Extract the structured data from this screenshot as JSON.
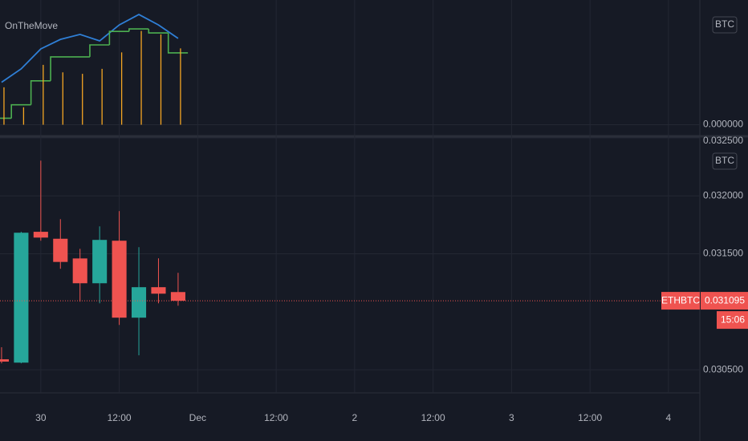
{
  "chart_data": [
    {
      "type": "indicator",
      "title": "OnTheMove",
      "unit": "BTC",
      "x": [
        0,
        1,
        2,
        3,
        4,
        5,
        6,
        7,
        8,
        9
      ],
      "series": [
        {
          "style": "line",
          "color": "#2f7fd6",
          "values": [
            8.5,
            11.2,
            15.2,
            17.1,
            18.1,
            16.8,
            20,
            22.1,
            20,
            17.3
          ]
        },
        {
          "style": "step",
          "color": "#4caf50",
          "values": [
            1.3,
            4,
            8.8,
            13.6,
            13.6,
            16,
            18.7,
            19.2,
            18.4,
            14.4
          ]
        },
        {
          "style": "histogram",
          "color": "#f5a623",
          "values": [
            7.5,
            3.5,
            12,
            10.5,
            10.2,
            11.2,
            14.5,
            18.8,
            18.1,
            15.3
          ]
        }
      ],
      "ylim": [
        -2,
        25
      ],
      "yticks": [
        {
          "value": 0,
          "label": "0.000000"
        }
      ]
    },
    {
      "type": "candlestick",
      "symbol": "ETHBTC",
      "unit": "BTC",
      "x": [
        0,
        1,
        2,
        3,
        4,
        5,
        6,
        7,
        8,
        9
      ],
      "open": [
        0.03059,
        0.030561,
        0.03169,
        0.03163,
        0.03146,
        0.031246,
        0.031613,
        0.030949,
        0.031212,
        0.03117
      ],
      "high": [
        0.030694,
        0.03169,
        0.032304,
        0.031799,
        0.031543,
        0.031737,
        0.031869,
        0.031557,
        0.031461,
        0.031336
      ],
      "low": [
        0.030555,
        0.030555,
        0.031613,
        0.031371,
        0.031087,
        0.031073,
        0.030886,
        0.030624,
        0.031073,
        0.031052
      ],
      "close": [
        0.03057,
        0.031682,
        0.03164,
        0.03143,
        0.031246,
        0.03162,
        0.030949,
        0.031212,
        0.031156,
        0.031095
      ],
      "up_color": "#26a69a",
      "down_color": "#ef5350",
      "ylim": [
        0.0303,
        0.0325
      ],
      "yticks": [
        {
          "value": 0.0325,
          "label": "0.032500"
        },
        {
          "value": 0.032,
          "label": "0.032000"
        },
        {
          "value": 0.0315,
          "label": "0.031500"
        },
        {
          "value": 0.0305,
          "label": "0.030500"
        }
      ],
      "last_price": 0.031095,
      "countdown": "15:06",
      "xlim": [
        -0.08,
        35.6
      ],
      "xticks": [
        {
          "value": 2,
          "label": "30"
        },
        {
          "value": 6,
          "label": "12:00"
        },
        {
          "value": 10,
          "label": "Dec"
        },
        {
          "value": 14,
          "label": "12:00"
        },
        {
          "value": 18,
          "label": "2"
        },
        {
          "value": 22,
          "label": "12:00"
        },
        {
          "value": 26,
          "label": "3"
        },
        {
          "value": 30,
          "label": "12:00"
        },
        {
          "value": 34,
          "label": "4"
        }
      ]
    }
  ]
}
